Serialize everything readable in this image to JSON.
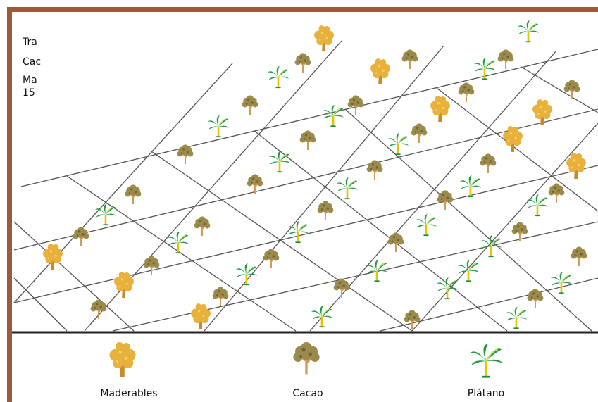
{
  "note": {
    "lines": [
      "Tra",
      "Cac",
      "Ma",
      "15"
    ]
  },
  "legend": {
    "items": [
      {
        "label": "Maderables"
      },
      {
        "label": "Cacao"
      },
      {
        "label": "Plátano"
      }
    ]
  }
}
